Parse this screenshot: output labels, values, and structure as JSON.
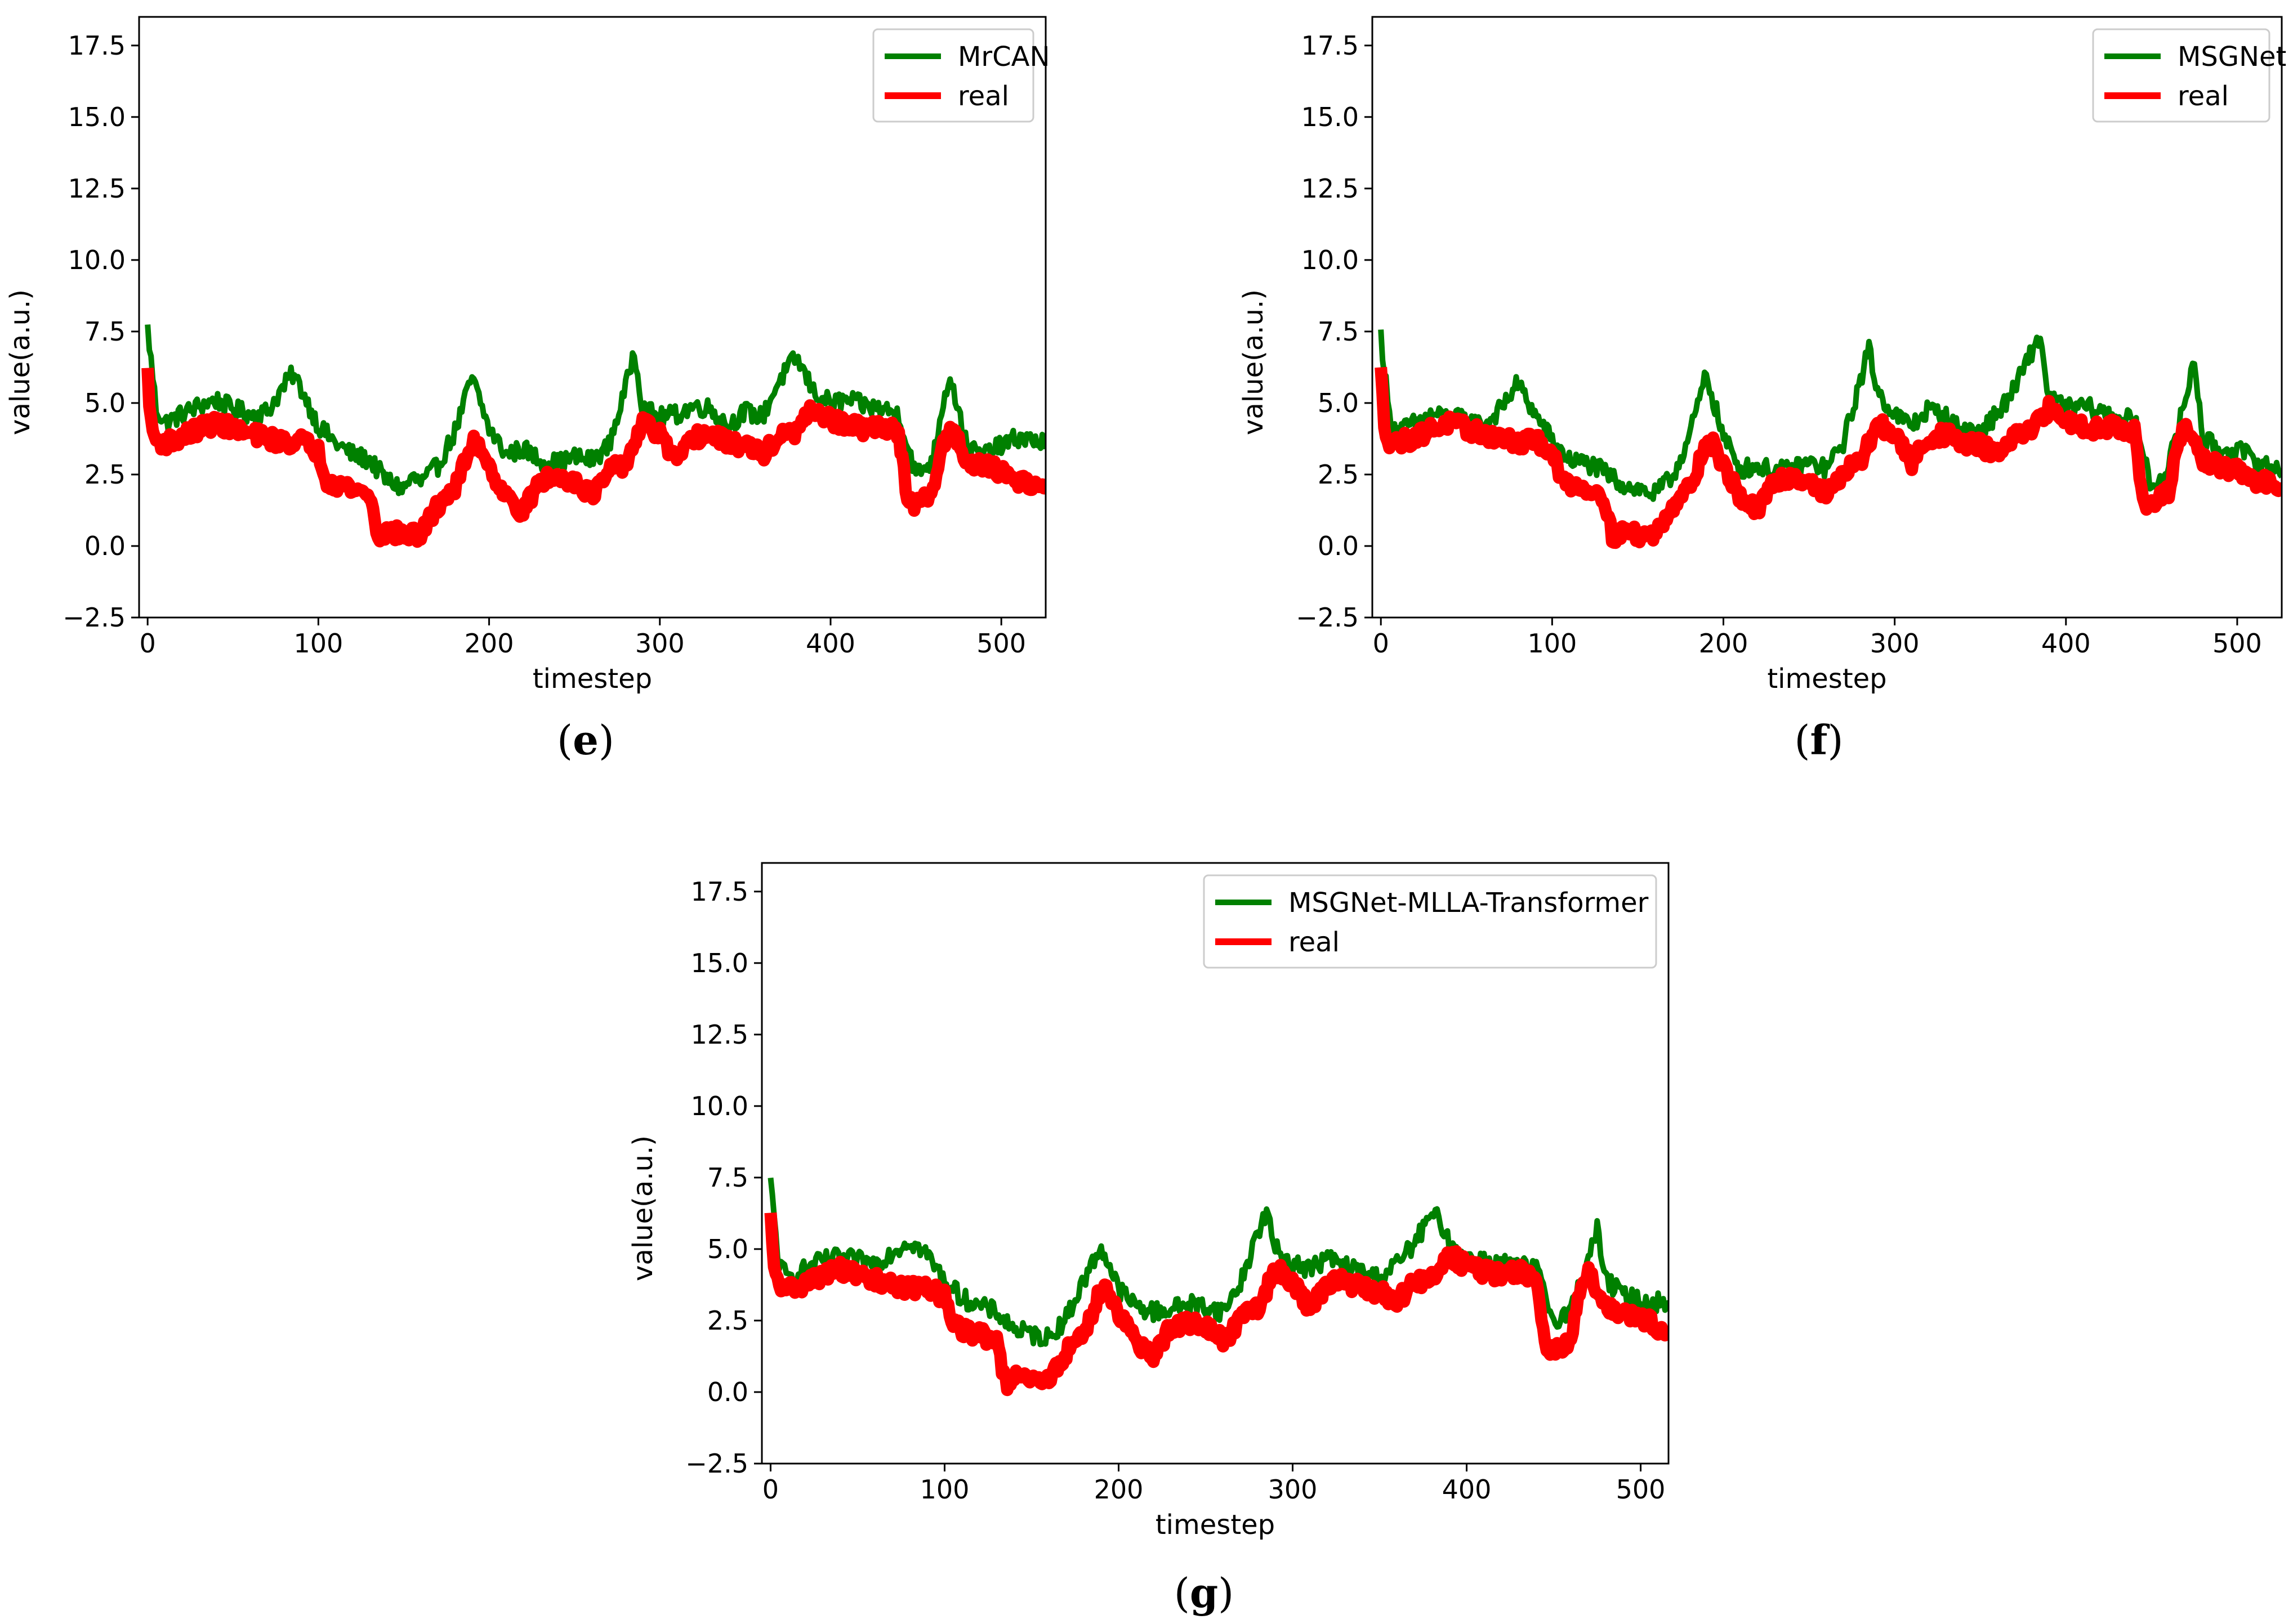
{
  "figure": {
    "panels": [
      "e",
      "f",
      "g"
    ]
  },
  "colors": {
    "predicted": "#008000",
    "real": "#ff0000",
    "axis": "#000000",
    "legend_border": "#cccccc"
  },
  "chart_data": [
    {
      "id": "e",
      "caption": "(e)",
      "caption_letter": "e",
      "type": "line",
      "xlabel": "timestep",
      "ylabel": "value(a.u.)",
      "xlim": [
        -5,
        526
      ],
      "ylim": [
        -2.5,
        18.5
      ],
      "xticks": [
        0,
        100,
        200,
        300,
        400,
        500
      ],
      "yticks": [
        -2.5,
        0.0,
        2.5,
        5.0,
        7.5,
        10.0,
        12.5,
        15.0,
        17.5
      ],
      "legend_position": "top-right",
      "series": [
        {
          "name": "MrCAN",
          "role": "predicted",
          "x": [
            0,
            5,
            10,
            20,
            30,
            40,
            50,
            60,
            70,
            80,
            85,
            90,
            100,
            110,
            120,
            130,
            140,
            150,
            155,
            160,
            170,
            180,
            190,
            200,
            210,
            220,
            230,
            240,
            250,
            260,
            270,
            280,
            285,
            290,
            300,
            310,
            320,
            330,
            340,
            350,
            360,
            370,
            380,
            390,
            400,
            410,
            420,
            430,
            440,
            450,
            460,
            465,
            470,
            480,
            490,
            500,
            510,
            526
          ],
          "values": [
            7.6,
            4.8,
            4.3,
            4.6,
            4.9,
            5.1,
            4.8,
            4.6,
            4.7,
            5.6,
            6.0,
            5.5,
            4.2,
            3.6,
            3.2,
            3.0,
            2.3,
            2.0,
            2.4,
            2.2,
            2.8,
            4.0,
            5.9,
            4.1,
            3.2,
            3.4,
            3.0,
            2.9,
            3.1,
            3.0,
            3.5,
            5.5,
            6.9,
            4.8,
            4.5,
            4.6,
            4.9,
            4.8,
            4.2,
            4.7,
            4.5,
            5.8,
            6.6,
            5.4,
            5.0,
            5.1,
            4.9,
            4.8,
            4.6,
            2.5,
            3.0,
            4.8,
            6.0,
            3.4,
            3.2,
            3.5,
            3.8,
            3.6
          ]
        },
        {
          "name": "real",
          "role": "real",
          "x": [
            0,
            2,
            5,
            10,
            20,
            30,
            40,
            50,
            60,
            70,
            80,
            90,
            100,
            105,
            110,
            120,
            130,
            135,
            140,
            150,
            160,
            170,
            175,
            180,
            190,
            195,
            200,
            210,
            220,
            230,
            240,
            250,
            260,
            265,
            270,
            280,
            290,
            300,
            310,
            320,
            330,
            340,
            350,
            360,
            370,
            380,
            390,
            400,
            410,
            420,
            430,
            440,
            445,
            450,
            460,
            465,
            470,
            480,
            490,
            500,
            510,
            526
          ],
          "values": [
            6.1,
            4.2,
            3.7,
            3.6,
            3.8,
            4.1,
            4.3,
            4.1,
            3.9,
            3.8,
            3.6,
            3.7,
            3.3,
            2.3,
            2.2,
            2.0,
            1.8,
            0.3,
            0.5,
            0.4,
            0.4,
            1.4,
            1.8,
            2.0,
            3.6,
            3.5,
            2.8,
            1.7,
            1.2,
            2.3,
            2.4,
            2.3,
            1.8,
            2.1,
            2.6,
            2.9,
            4.3,
            3.9,
            2.9,
            3.8,
            3.9,
            3.6,
            3.5,
            3.2,
            3.8,
            4.0,
            4.8,
            4.4,
            4.2,
            4.1,
            4.2,
            4.0,
            1.5,
            1.4,
            1.9,
            3.4,
            4.2,
            3.0,
            2.8,
            2.6,
            2.3,
            2.1
          ]
        }
      ]
    },
    {
      "id": "f",
      "caption": "(f)",
      "caption_letter": "f",
      "type": "line",
      "xlabel": "timestep",
      "ylabel": "value(a.u.)",
      "xlim": [
        -5,
        526
      ],
      "ylim": [
        -2.5,
        18.5
      ],
      "xticks": [
        0,
        100,
        200,
        300,
        400,
        500
      ],
      "yticks": [
        -2.5,
        0.0,
        2.5,
        5.0,
        7.5,
        10.0,
        12.5,
        15.0,
        17.5
      ],
      "legend_position": "top-right",
      "series": [
        {
          "name": "MSGNet",
          "role": "predicted",
          "x": [
            0,
            5,
            10,
            20,
            30,
            40,
            50,
            60,
            70,
            80,
            90,
            100,
            110,
            120,
            130,
            140,
            150,
            160,
            170,
            180,
            190,
            200,
            210,
            220,
            230,
            240,
            250,
            260,
            270,
            280,
            285,
            290,
            300,
            310,
            320,
            330,
            340,
            350,
            360,
            370,
            380,
            385,
            390,
            400,
            410,
            420,
            430,
            440,
            450,
            460,
            470,
            475,
            480,
            490,
            500,
            510,
            526
          ],
          "values": [
            7.4,
            4.5,
            4.0,
            4.3,
            4.6,
            4.5,
            4.4,
            4.2,
            4.8,
            5.7,
            4.6,
            3.7,
            3.0,
            2.9,
            2.6,
            2.2,
            2.0,
            1.8,
            2.4,
            3.8,
            6.0,
            3.8,
            2.7,
            2.8,
            2.6,
            2.7,
            2.9,
            2.7,
            3.6,
            5.8,
            6.9,
            5.4,
            4.6,
            4.2,
            4.8,
            4.5,
            4.0,
            4.1,
            4.6,
            5.5,
            6.8,
            7.3,
            5.2,
            4.8,
            4.9,
            4.7,
            4.5,
            4.4,
            2.0,
            2.8,
            5.2,
            6.5,
            3.8,
            3.3,
            3.4,
            3.0,
            2.6
          ]
        },
        {
          "name": "real",
          "role": "real",
          "x": [
            0,
            2,
            5,
            10,
            20,
            30,
            40,
            50,
            60,
            70,
            80,
            90,
            100,
            105,
            110,
            120,
            130,
            135,
            140,
            150,
            160,
            170,
            175,
            180,
            190,
            195,
            200,
            210,
            220,
            230,
            240,
            250,
            260,
            265,
            270,
            280,
            290,
            300,
            310,
            320,
            330,
            340,
            350,
            360,
            370,
            380,
            390,
            400,
            410,
            420,
            430,
            440,
            445,
            450,
            460,
            465,
            470,
            480,
            490,
            500,
            510,
            526
          ],
          "values": [
            6.1,
            4.2,
            3.7,
            3.6,
            3.8,
            4.1,
            4.3,
            4.1,
            3.9,
            3.8,
            3.6,
            3.7,
            3.3,
            2.3,
            2.2,
            2.0,
            1.8,
            0.3,
            0.5,
            0.4,
            0.4,
            1.4,
            1.8,
            2.0,
            3.6,
            3.5,
            2.8,
            1.7,
            1.2,
            2.3,
            2.4,
            2.3,
            1.8,
            2.1,
            2.6,
            2.9,
            4.3,
            3.9,
            2.9,
            3.8,
            3.9,
            3.6,
            3.5,
            3.2,
            3.8,
            4.0,
            4.8,
            4.4,
            4.2,
            4.1,
            4.2,
            4.0,
            1.5,
            1.4,
            1.9,
            3.4,
            4.2,
            3.0,
            2.8,
            2.6,
            2.3,
            2.1
          ]
        }
      ]
    },
    {
      "id": "g",
      "caption": "(g)",
      "caption_letter": "g",
      "type": "line",
      "xlabel": "timestep",
      "ylabel": "value(a.u.)",
      "xlim": [
        -5,
        516
      ],
      "ylim": [
        -2.5,
        18.5
      ],
      "xticks": [
        0,
        100,
        200,
        300,
        400,
        500
      ],
      "yticks": [
        -2.5,
        0.0,
        2.5,
        5.0,
        7.5,
        10.0,
        12.5,
        15.0,
        17.5
      ],
      "legend_position": "top-right",
      "series": [
        {
          "name": "MSGNet-MLLA-Transformer",
          "role": "predicted",
          "x": [
            0,
            5,
            10,
            20,
            30,
            40,
            50,
            60,
            70,
            80,
            90,
            100,
            110,
            120,
            130,
            140,
            150,
            160,
            170,
            180,
            190,
            200,
            210,
            220,
            230,
            240,
            250,
            260,
            270,
            280,
            285,
            290,
            300,
            310,
            320,
            330,
            340,
            350,
            360,
            370,
            380,
            385,
            390,
            400,
            410,
            420,
            430,
            440,
            450,
            460,
            470,
            475,
            480,
            490,
            500,
            516
          ],
          "values": [
            7.3,
            4.4,
            4.0,
            4.3,
            4.6,
            4.7,
            4.6,
            4.5,
            4.9,
            5.3,
            4.8,
            3.9,
            3.3,
            3.0,
            2.8,
            2.2,
            2.0,
            1.9,
            2.6,
            3.9,
            5.1,
            3.6,
            3.0,
            2.8,
            2.9,
            3.1,
            3.0,
            2.8,
            3.8,
            5.6,
            6.3,
            5.0,
            4.5,
            4.3,
            4.7,
            4.4,
            4.2,
            4.0,
            4.5,
            5.2,
            6.2,
            6.0,
            5.2,
            4.7,
            4.6,
            4.5,
            4.4,
            4.3,
            2.5,
            2.9,
            4.7,
            5.7,
            3.9,
            3.4,
            3.2,
            3.1
          ]
        },
        {
          "name": "real",
          "role": "real",
          "x": [
            0,
            2,
            5,
            10,
            20,
            30,
            40,
            50,
            60,
            70,
            80,
            90,
            100,
            105,
            110,
            120,
            130,
            135,
            140,
            150,
            160,
            170,
            175,
            180,
            190,
            195,
            200,
            210,
            220,
            230,
            240,
            250,
            260,
            265,
            270,
            280,
            290,
            300,
            310,
            320,
            330,
            340,
            350,
            360,
            370,
            380,
            390,
            400,
            410,
            420,
            430,
            440,
            445,
            450,
            460,
            465,
            470,
            480,
            490,
            500,
            516
          ],
          "values": [
            6.1,
            4.2,
            3.7,
            3.6,
            3.8,
            4.1,
            4.3,
            4.1,
            3.9,
            3.8,
            3.6,
            3.7,
            3.3,
            2.3,
            2.2,
            2.0,
            1.8,
            0.3,
            0.5,
            0.4,
            0.4,
            1.4,
            1.8,
            2.0,
            3.6,
            3.5,
            2.8,
            1.7,
            1.2,
            2.3,
            2.4,
            2.3,
            1.8,
            2.1,
            2.6,
            2.9,
            4.3,
            3.9,
            2.9,
            3.8,
            3.9,
            3.6,
            3.5,
            3.2,
            3.8,
            4.0,
            4.8,
            4.4,
            4.2,
            4.1,
            4.2,
            4.0,
            1.5,
            1.4,
            1.9,
            3.4,
            4.2,
            3.0,
            2.8,
            2.6,
            2.1
          ]
        }
      ]
    }
  ]
}
